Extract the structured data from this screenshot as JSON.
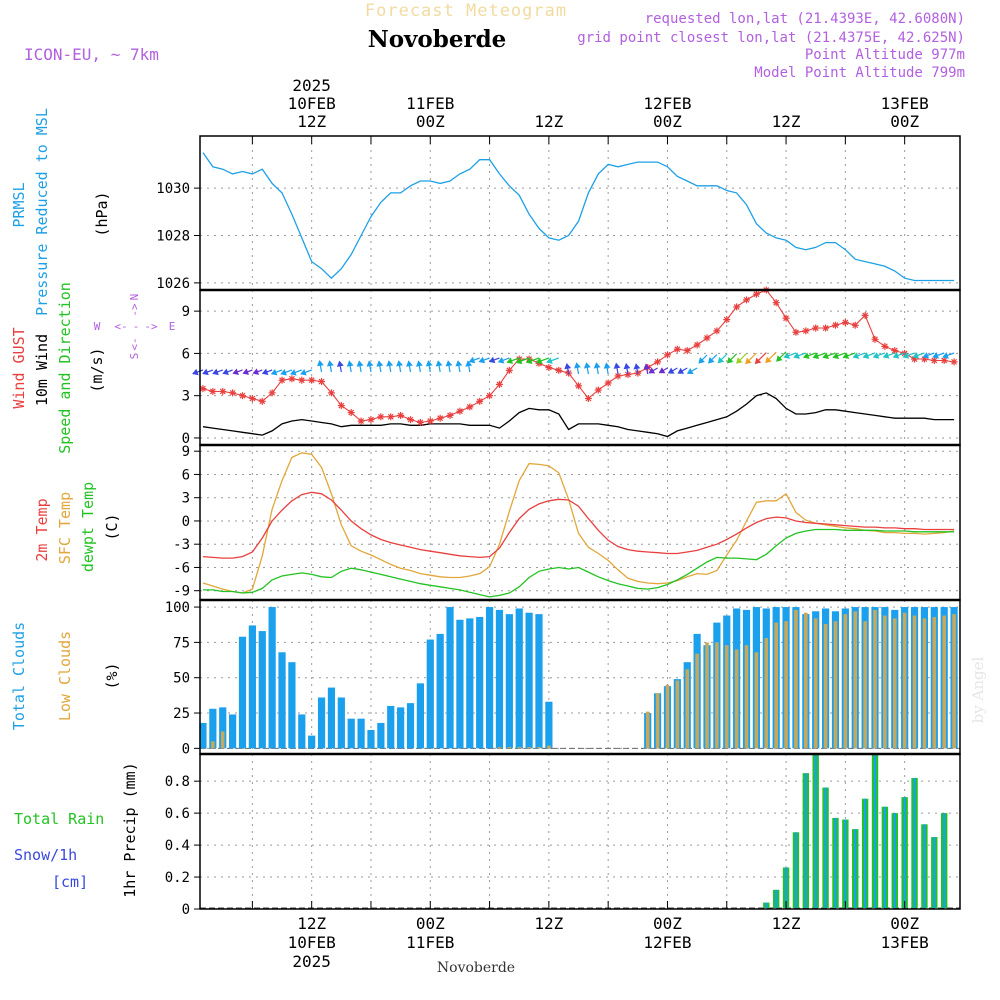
{
  "header": {
    "top_label": "Forecast Meteogram",
    "place": "Novoberde",
    "model": "ICON-EU, ~ 7km",
    "requested": "requested lon,lat (21.4393E, 42.6080N)",
    "gridpoint": "grid point closest lon,lat (21.4375E, 42.625N)",
    "point_alt": "Point Altitude 977m",
    "model_alt": "Model Point Altitude 799m",
    "footer_place": "Novoberde",
    "watermark": "by Angel"
  },
  "time_axis": {
    "top_ticks": [
      {
        "h": 12,
        "lines": [
          "2025",
          "10FEB",
          "12Z"
        ]
      },
      {
        "h": 24,
        "lines": [
          "11FEB",
          "00Z"
        ]
      },
      {
        "h": 36,
        "lines": [
          "12Z"
        ]
      },
      {
        "h": 48,
        "lines": [
          "12FEB",
          "00Z"
        ]
      },
      {
        "h": 60,
        "lines": [
          "12Z"
        ]
      },
      {
        "h": 72,
        "lines": [
          "13FEB",
          "00Z"
        ]
      }
    ],
    "bottom_ticks": [
      {
        "h": 12,
        "lines": [
          "12Z",
          "10FEB",
          "2025"
        ]
      },
      {
        "h": 24,
        "lines": [
          "00Z",
          "11FEB"
        ]
      },
      {
        "h": 36,
        "lines": [
          "12Z"
        ]
      },
      {
        "h": 48,
        "lines": [
          "00Z",
          "12FEB"
        ]
      },
      {
        "h": 60,
        "lines": [
          "12Z"
        ]
      },
      {
        "h": 72,
        "lines": [
          "00Z",
          "13FEB"
        ]
      }
    ],
    "range": [
      0.7,
      77.6
    ]
  },
  "panels": {
    "pressure": {
      "labels": [
        "PRMSL",
        "Pressure Reduced to MSL"
      ],
      "unit": "(hPa)",
      "ticks": [
        "1026",
        "1028",
        "1030"
      ],
      "color": "#1ea0e6"
    },
    "wind": {
      "labels": [
        "Wind GUST",
        "10m Wind",
        "Speed and Direction"
      ],
      "unit": "(m/s)",
      "ticks": [
        "0",
        "3",
        "6",
        "9"
      ],
      "compass": [
        "N",
        "->",
        "W",
        "<-",
        "-",
        "->",
        "E",
        "<-",
        "S"
      ],
      "colors": {
        "gust": "#e8403f",
        "wind": "#000000",
        "dir": "#22c322"
      }
    },
    "temp": {
      "labels": [
        "2m Temp",
        "SFC Temp",
        "dewpt Temp"
      ],
      "unit": "(C)",
      "ticks": [
        "-9",
        "-6",
        "-3",
        "0",
        "3",
        "6",
        "9"
      ],
      "colors": {
        "t2m": "#e8403f",
        "sfc": "#e2a63a",
        "dew": "#22c322"
      }
    },
    "clouds": {
      "labels": [
        "Total Clouds",
        "Low Clouds"
      ],
      "unit": "(%)",
      "ticks": [
        "0",
        "25",
        "50",
        "75",
        "100"
      ],
      "colors": {
        "total": "#1aa0ec",
        "low": "#c8a95c"
      }
    },
    "precip": {
      "labels": [
        "Total Rain",
        "Snow/1h",
        "[cm]"
      ],
      "unit": "1hr Precip (mm)",
      "ticks": [
        "0",
        "0.2",
        "0.4",
        "0.6",
        "0.8"
      ],
      "colors": {
        "rain": "#22c322",
        "snow": "#3a48e0",
        "bar": "#1aa0ec"
      }
    }
  },
  "chart_data": [
    {
      "type": "line",
      "name": "PRMSL",
      "ylim": [
        1025.7,
        1032.2
      ],
      "x": [
        1,
        2,
        3,
        4,
        5,
        6,
        7,
        8,
        9,
        10,
        11,
        12,
        13,
        14,
        15,
        16,
        17,
        18,
        19,
        20,
        21,
        22,
        23,
        24,
        25,
        26,
        27,
        28,
        29,
        30,
        31,
        32,
        33,
        34,
        35,
        36,
        37,
        38,
        39,
        40,
        41,
        42,
        43,
        44,
        45,
        46,
        47,
        48,
        49,
        50,
        51,
        52,
        53,
        54,
        55,
        56,
        57,
        58,
        59,
        60,
        61,
        62,
        63,
        64,
        65,
        66,
        67,
        68,
        69,
        70,
        71,
        72,
        73,
        74,
        75,
        76,
        77
      ],
      "values": [
        1031.5,
        1030.9,
        1030.8,
        1030.6,
        1030.7,
        1030.6,
        1030.8,
        1030.2,
        1029.8,
        1028.9,
        1027.9,
        1026.9,
        1026.6,
        1026.2,
        1026.6,
        1027.2,
        1028.0,
        1028.8,
        1029.4,
        1029.8,
        1029.8,
        1030.1,
        1030.3,
        1030.3,
        1030.2,
        1030.3,
        1030.6,
        1030.8,
        1031.2,
        1031.2,
        1030.6,
        1030.1,
        1029.7,
        1028.9,
        1028.3,
        1027.9,
        1027.8,
        1028.0,
        1028.6,
        1029.8,
        1030.6,
        1031.0,
        1030.9,
        1031.0,
        1031.1,
        1031.1,
        1031.1,
        1030.9,
        1030.5,
        1030.3,
        1030.1,
        1030.1,
        1030.1,
        1029.9,
        1029.8,
        1029.3,
        1028.5,
        1028.1,
        1027.9,
        1027.8,
        1027.5,
        1027.4,
        1027.5,
        1027.7,
        1027.7,
        1027.4,
        1027.0,
        1026.9,
        1026.8,
        1026.7,
        1026.5,
        1026.2,
        1026.1,
        1026.1,
        1026.1,
        1026.1,
        1026.1
      ]
    },
    {
      "type": "line",
      "name": "Wind",
      "ylim": [
        -0.5,
        10.5
      ],
      "x": [
        1,
        2,
        3,
        4,
        5,
        6,
        7,
        8,
        9,
        10,
        11,
        12,
        13,
        14,
        15,
        16,
        17,
        18,
        19,
        20,
        21,
        22,
        23,
        24,
        25,
        26,
        27,
        28,
        29,
        30,
        31,
        32,
        33,
        34,
        35,
        36,
        37,
        38,
        39,
        40,
        41,
        42,
        43,
        44,
        45,
        46,
        47,
        48,
        49,
        50,
        51,
        52,
        53,
        54,
        55,
        56,
        57,
        58,
        59,
        60,
        61,
        62,
        63,
        64,
        65,
        66,
        67,
        68,
        69,
        70,
        71,
        72,
        73,
        74,
        75,
        76,
        77
      ],
      "gust": [
        3.5,
        3.3,
        3.3,
        3.2,
        3.0,
        2.8,
        2.6,
        3.2,
        4.1,
        4.2,
        4.1,
        4.1,
        4.0,
        3.2,
        2.3,
        1.8,
        1.2,
        1.3,
        1.5,
        1.5,
        1.6,
        1.3,
        1.1,
        1.2,
        1.4,
        1.6,
        1.9,
        2.2,
        2.6,
        3.0,
        3.8,
        4.8,
        5.6,
        5.6,
        5.3,
        5.0,
        4.8,
        4.6,
        3.7,
        2.8,
        3.4,
        3.9,
        4.4,
        4.5,
        4.6,
        5.0,
        5.4,
        5.9,
        6.3,
        6.2,
        6.6,
        7.1,
        7.6,
        8.4,
        9.3,
        9.8,
        10.2,
        10.5,
        9.6,
        8.5,
        7.5,
        7.6,
        7.8,
        7.8,
        8.0,
        8.2,
        8.0,
        8.7,
        7.0,
        6.5,
        6.2,
        6.0,
        5.6,
        5.6,
        5.5,
        5.5,
        5.4
      ],
      "wind": [
        0.8,
        0.7,
        0.6,
        0.5,
        0.4,
        0.3,
        0.2,
        0.5,
        1.0,
        1.2,
        1.3,
        1.2,
        1.1,
        1.0,
        0.8,
        0.9,
        0.9,
        0.9,
        0.9,
        1.0,
        1.0,
        0.9,
        0.9,
        1.0,
        1.0,
        1.0,
        1.0,
        0.9,
        0.9,
        0.9,
        0.7,
        1.2,
        1.8,
        2.1,
        2.0,
        2.0,
        1.7,
        0.6,
        1.0,
        1.0,
        1.0,
        0.9,
        0.8,
        0.6,
        0.5,
        0.4,
        0.3,
        0.1,
        0.5,
        0.7,
        0.9,
        1.1,
        1.3,
        1.5,
        1.9,
        2.4,
        3.0,
        3.2,
        2.8,
        2.1,
        1.7,
        1.7,
        1.8,
        2.0,
        2.0,
        1.9,
        1.8,
        1.7,
        1.6,
        1.5,
        1.4,
        1.4,
        1.4,
        1.4,
        1.3,
        1.3,
        1.3
      ]
    },
    {
      "type": "line",
      "name": "Temperature",
      "ylim": [
        -10.2,
        9.8
      ],
      "x": [
        1,
        2,
        3,
        4,
        5,
        6,
        7,
        8,
        9,
        10,
        11,
        12,
        13,
        14,
        15,
        16,
        17,
        18,
        19,
        20,
        21,
        22,
        23,
        24,
        25,
        26,
        27,
        28,
        29,
        30,
        31,
        32,
        33,
        34,
        35,
        36,
        37,
        38,
        39,
        40,
        41,
        42,
        43,
        44,
        45,
        46,
        47,
        48,
        49,
        50,
        51,
        52,
        53,
        54,
        55,
        56,
        57,
        58,
        59,
        60,
        61,
        62,
        63,
        64,
        65,
        66,
        67,
        68,
        69,
        70,
        71,
        72,
        73,
        74,
        75,
        76,
        77
      ],
      "t2m": [
        -4.6,
        -4.7,
        -4.8,
        -4.8,
        -4.6,
        -4.0,
        -2.2,
        0.0,
        1.4,
        2.6,
        3.4,
        3.7,
        3.5,
        2.7,
        1.4,
        0.0,
        -1.0,
        -1.8,
        -2.4,
        -2.8,
        -3.1,
        -3.4,
        -3.7,
        -3.9,
        -4.1,
        -4.3,
        -4.5,
        -4.6,
        -4.7,
        -4.6,
        -3.5,
        -1.5,
        0.3,
        1.5,
        2.2,
        2.6,
        2.8,
        2.7,
        1.9,
        0.3,
        -1.2,
        -2.5,
        -3.3,
        -3.7,
        -3.9,
        -4.0,
        -4.1,
        -4.2,
        -4.2,
        -4.0,
        -3.8,
        -3.4,
        -3.0,
        -2.4,
        -1.7,
        -0.9,
        -0.2,
        0.3,
        0.5,
        0.4,
        0.0,
        -0.2,
        -0.3,
        -0.4,
        -0.5,
        -0.6,
        -0.7,
        -0.8,
        -0.8,
        -0.9,
        -0.9,
        -1.0,
        -1.0,
        -1.1,
        -1.1,
        -1.1,
        -1.1
      ],
      "sfc": [
        -8.0,
        -8.4,
        -8.8,
        -9.1,
        -9.3,
        -8.8,
        -4.5,
        1.5,
        5.2,
        8.2,
        8.8,
        8.6,
        6.9,
        3.5,
        -0.5,
        -3.2,
        -3.9,
        -4.4,
        -5.0,
        -5.6,
        -6.1,
        -6.4,
        -6.8,
        -7.0,
        -7.2,
        -7.3,
        -7.3,
        -7.1,
        -6.8,
        -5.9,
        -3.0,
        1.2,
        5.2,
        7.4,
        7.3,
        7.1,
        6.2,
        2.8,
        -1.6,
        -3.4,
        -4.2,
        -5.1,
        -6.3,
        -7.4,
        -7.8,
        -8.0,
        -8.1,
        -8.0,
        -7.7,
        -7.2,
        -6.8,
        -6.9,
        -6.4,
        -4.4,
        -2.5,
        0.0,
        2.4,
        2.6,
        2.6,
        3.5,
        1.1,
        0.1,
        -0.3,
        -0.5,
        -0.7,
        -0.9,
        -1.0,
        -1.2,
        -1.3,
        -1.5,
        -1.5,
        -1.6,
        -1.6,
        -1.7,
        -1.6,
        -1.5,
        -1.3
      ],
      "dew": [
        -8.9,
        -8.9,
        -9.1,
        -9.1,
        -9.3,
        -9.2,
        -8.7,
        -7.6,
        -7.1,
        -6.9,
        -6.7,
        -6.9,
        -7.2,
        -7.3,
        -6.5,
        -6.1,
        -6.3,
        -6.6,
        -6.9,
        -7.2,
        -7.5,
        -7.8,
        -8.1,
        -8.3,
        -8.5,
        -8.7,
        -8.9,
        -9.2,
        -9.5,
        -9.8,
        -9.6,
        -9.3,
        -8.5,
        -7.3,
        -6.5,
        -6.2,
        -6.0,
        -6.2,
        -6.0,
        -6.6,
        -7.2,
        -7.7,
        -8.1,
        -8.4,
        -8.7,
        -8.8,
        -8.6,
        -8.2,
        -7.6,
        -6.9,
        -6.1,
        -5.3,
        -4.7,
        -4.8,
        -4.8,
        -4.9,
        -5.0,
        -4.3,
        -3.2,
        -2.2,
        -1.6,
        -1.3,
        -1.1,
        -1.1,
        -1.1,
        -1.2,
        -1.2,
        -1.2,
        -1.2,
        -1.3,
        -1.3,
        -1.3,
        -1.4,
        -1.4,
        -1.4,
        -1.4,
        -1.4
      ]
    },
    {
      "type": "bar",
      "name": "Clouds",
      "ylim": [
        -4,
        105
      ],
      "x": [
        1,
        2,
        3,
        4,
        5,
        6,
        7,
        8,
        9,
        10,
        11,
        12,
        13,
        14,
        15,
        16,
        17,
        18,
        19,
        20,
        21,
        22,
        23,
        24,
        25,
        26,
        27,
        28,
        29,
        30,
        31,
        32,
        33,
        34,
        35,
        36,
        37,
        38,
        39,
        40,
        41,
        42,
        43,
        44,
        45,
        46,
        47,
        48,
        49,
        50,
        51,
        52,
        53,
        54,
        55,
        56,
        57,
        58,
        59,
        60,
        61,
        62,
        63,
        64,
        65,
        66,
        67,
        68,
        69,
        70,
        71,
        72,
        73,
        74,
        75,
        76,
        77
      ],
      "total": [
        18,
        28,
        29,
        24,
        79,
        87,
        83,
        100,
        68,
        61,
        24,
        9,
        36,
        43,
        36,
        21,
        21,
        13,
        18,
        30,
        29,
        32,
        46,
        77,
        81,
        100,
        91,
        92,
        93,
        100,
        98,
        95,
        99,
        96,
        95,
        33,
        0,
        0,
        0,
        0,
        0,
        0,
        0,
        0,
        0,
        25,
        39,
        44,
        49,
        61,
        81,
        73,
        89,
        94,
        99,
        98,
        100,
        99,
        100,
        100,
        100,
        95,
        97,
        99,
        97,
        99,
        100,
        100,
        100,
        100,
        98,
        100,
        100,
        100,
        100,
        100,
        100
      ],
      "low": [
        0,
        5,
        12,
        0,
        0,
        0,
        0,
        0,
        0,
        0,
        0,
        0,
        0,
        0,
        0,
        0,
        0,
        0,
        0,
        0,
        0,
        0,
        0,
        0,
        0,
        0,
        0,
        0,
        0,
        0,
        1,
        1,
        1,
        1,
        1,
        2,
        0,
        0,
        0,
        0,
        0,
        0,
        0,
        0,
        0,
        26,
        39,
        45,
        48,
        56,
        67,
        75,
        75,
        73,
        70,
        73,
        68,
        78,
        89,
        90,
        98,
        96,
        92,
        88,
        90,
        95,
        97,
        90,
        98,
        94,
        92,
        96,
        94,
        92,
        93,
        94,
        95
      ]
    },
    {
      "type": "bar",
      "name": "Precip",
      "ylim": [
        0,
        0.97
      ],
      "x": [
        58,
        59,
        60,
        61,
        62,
        63,
        64,
        65,
        66,
        67,
        68,
        69,
        70,
        71,
        72,
        73,
        74,
        75,
        76,
        77
      ],
      "values": [
        0.04,
        0.12,
        0.26,
        0.48,
        0.85,
        0.97,
        0.76,
        0.57,
        0.56,
        0.5,
        0.69,
        0.97,
        0.64,
        0.6,
        0.7,
        0.82,
        0.53,
        0.45,
        0.6,
        0.0
      ]
    }
  ]
}
